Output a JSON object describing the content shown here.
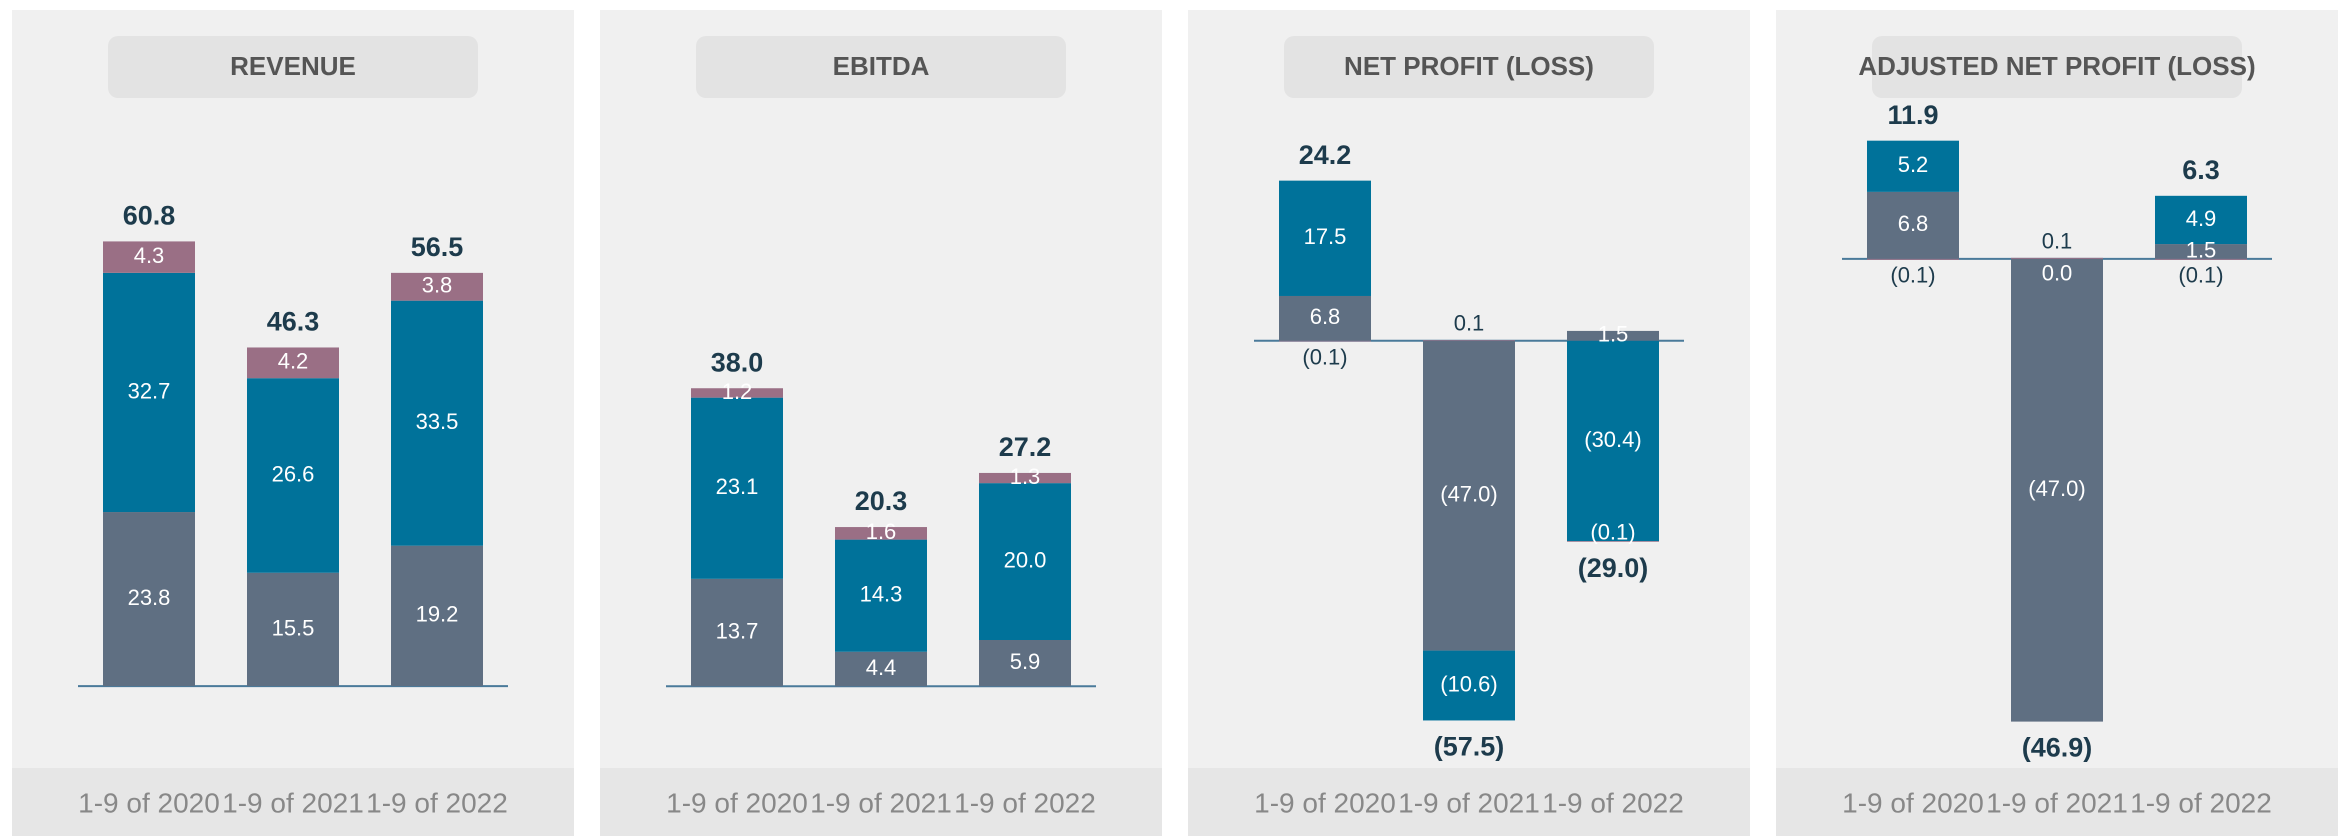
{
  "chart_data": [
    {
      "type": "bar",
      "stacked": true,
      "title": "REVENUE",
      "categories": [
        "1-9 of 2020",
        "1-9 of 2021",
        "1-9 of 2022"
      ],
      "series": [
        {
          "color": "#5f6f82",
          "values": [
            23.8,
            15.5,
            19.2
          ],
          "value_labels": [
            "23.8",
            "15.5",
            "19.2"
          ]
        },
        {
          "color": "#00729a",
          "values": [
            32.7,
            26.6,
            33.5
          ],
          "value_labels": [
            "32.7",
            "26.6",
            "33.5"
          ]
        },
        {
          "color": "#9a6f85",
          "values": [
            4.3,
            4.2,
            3.8
          ],
          "value_labels": [
            "4.3",
            "4.2",
            "3.8"
          ]
        }
      ],
      "totals": {
        "values": [
          60.8,
          46.3,
          56.5
        ],
        "value_labels": [
          "60.8",
          "46.3",
          "56.5"
        ]
      },
      "ylim": [
        -10.1,
        77.4
      ]
    },
    {
      "type": "bar",
      "stacked": true,
      "title": "EBITDA",
      "categories": [
        "1-9 of 2020",
        "1-9 of 2021",
        "1-9 of 2022"
      ],
      "series": [
        {
          "color": "#5f6f82",
          "values": [
            13.7,
            4.4,
            5.9
          ],
          "value_labels": [
            "13.7",
            "4.4",
            "5.9"
          ]
        },
        {
          "color": "#00729a",
          "values": [
            23.1,
            14.3,
            20.0
          ],
          "value_labels": [
            "23.1",
            "14.3",
            "20.0"
          ]
        },
        {
          "color": "#9a6f85",
          "values": [
            1.2,
            1.6,
            1.3
          ],
          "value_labels": [
            "1.2",
            "1.6",
            "1.3"
          ]
        }
      ],
      "totals": {
        "values": [
          38.0,
          20.3,
          27.2
        ],
        "value_labels": [
          "38.0",
          "20.3",
          "27.2"
        ]
      },
      "ylim": [
        -9.4,
        72.2
      ]
    },
    {
      "type": "bar",
      "stacked": true,
      "title": "NET PROFIT (LOSS)",
      "categories": [
        "1-9 of 2020",
        "1-9 of 2021",
        "1-9 of 2022"
      ],
      "series": [
        {
          "color": "#5f6f82",
          "values": [
            6.8,
            -47.0,
            1.5
          ],
          "value_labels": [
            "6.8",
            "(47.0)",
            "1.5"
          ]
        },
        {
          "color": "#00729a",
          "values": [
            17.5,
            -10.6,
            -30.4
          ],
          "value_labels": [
            "17.5",
            "(10.6)",
            "(30.4)"
          ]
        },
        {
          "color": "#9a6f85",
          "values": [
            -0.1,
            0.1,
            -0.1
          ],
          "value_labels": [
            "(0.1)",
            "0.1",
            "(0.1)"
          ]
        }
      ],
      "totals": {
        "values": [
          24.2,
          -57.5,
          -29.0
        ],
        "value_labels": [
          "24.2",
          "(57.5)",
          "(29.0)"
        ]
      },
      "ylim": [
        -63.6,
        33.5
      ]
    },
    {
      "type": "bar",
      "stacked": true,
      "title": "ADJUSTED NET PROFIT (LOSS)",
      "categories": [
        "1-9 of 2020",
        "1-9 of 2021",
        "1-9 of 2022"
      ],
      "series": [
        {
          "color": "#5f6f82",
          "values": [
            6.8,
            -47.0,
            1.5
          ],
          "value_labels": [
            "6.8",
            "(47.0)",
            "1.5"
          ]
        },
        {
          "color": "#00729a",
          "values": [
            5.2,
            0.0,
            4.9
          ],
          "value_labels": [
            "5.2",
            "0.0",
            "4.9"
          ]
        },
        {
          "color": "#9a6f85",
          "values": [
            -0.1,
            0.1,
            -0.1
          ],
          "value_labels": [
            "(0.1)",
            "0.1",
            "(0.1)"
          ]
        }
      ],
      "totals": {
        "values": [
          11.9,
          -46.9,
          6.3
        ],
        "value_labels": [
          "11.9",
          "(46.9)",
          "6.3"
        ]
      },
      "ylim": [
        -50.9,
        14.1
      ]
    }
  ]
}
